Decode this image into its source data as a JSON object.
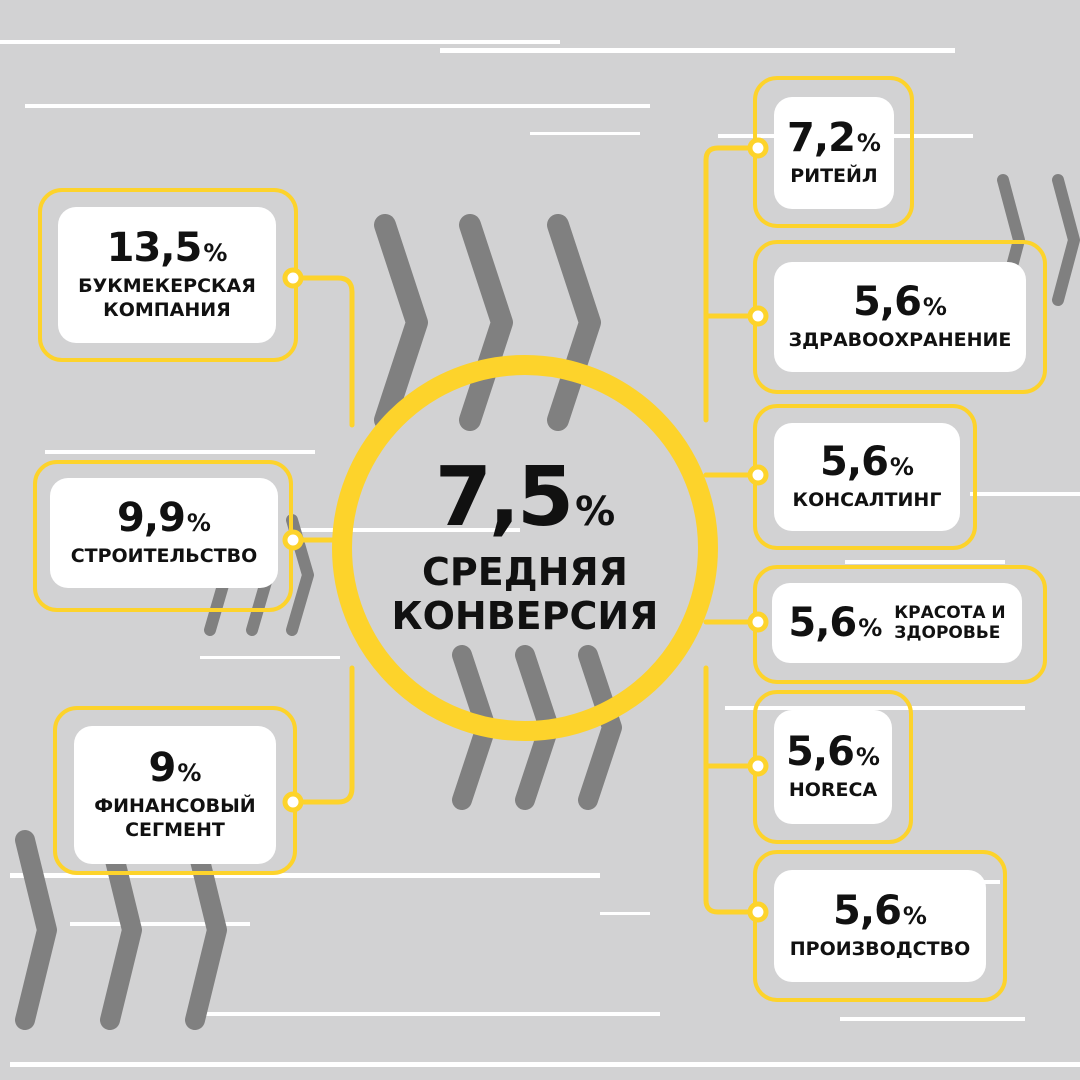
{
  "colors": {
    "background": "#d2d2d3",
    "accent": "#fdd32b",
    "card": "#ffffff",
    "chevron": "#808080",
    "text": "#111111"
  },
  "center": {
    "value": "7,5",
    "unit": "%",
    "label_line1": "СРЕДНЯЯ",
    "label_line2": "КОНВЕРСИЯ"
  },
  "left_items": [
    {
      "value": "13,5",
      "unit": "%",
      "label_line1": "БУКМЕКЕРСКАЯ",
      "label_line2": "КОМПАНИЯ"
    },
    {
      "value": "9,9",
      "unit": "%",
      "label_line1": "СТРОИТЕЛЬСТВО"
    },
    {
      "value": "9",
      "unit": "%",
      "label_line1": "ФИНАНСОВЫЙ",
      "label_line2": "СЕГМЕНТ"
    }
  ],
  "right_items": [
    {
      "value": "7,2",
      "unit": "%",
      "label_line1": "РИТЕЙЛ"
    },
    {
      "value": "5,6",
      "unit": "%",
      "label_line1": "ЗДРАВООХРАНЕНИЕ"
    },
    {
      "value": "5,6",
      "unit": "%",
      "label_line1": "КОНСАЛТИНГ"
    },
    {
      "value": "5,6",
      "unit": "%",
      "label_line1": "КРАСОТА И",
      "label_line2": "ЗДОРОВЬЕ"
    },
    {
      "value": "5,6",
      "unit": "%",
      "label_line1": "HORECA"
    },
    {
      "value": "5,6",
      "unit": "%",
      "label_line1": "ПРОИЗВОДСТВО"
    }
  ]
}
